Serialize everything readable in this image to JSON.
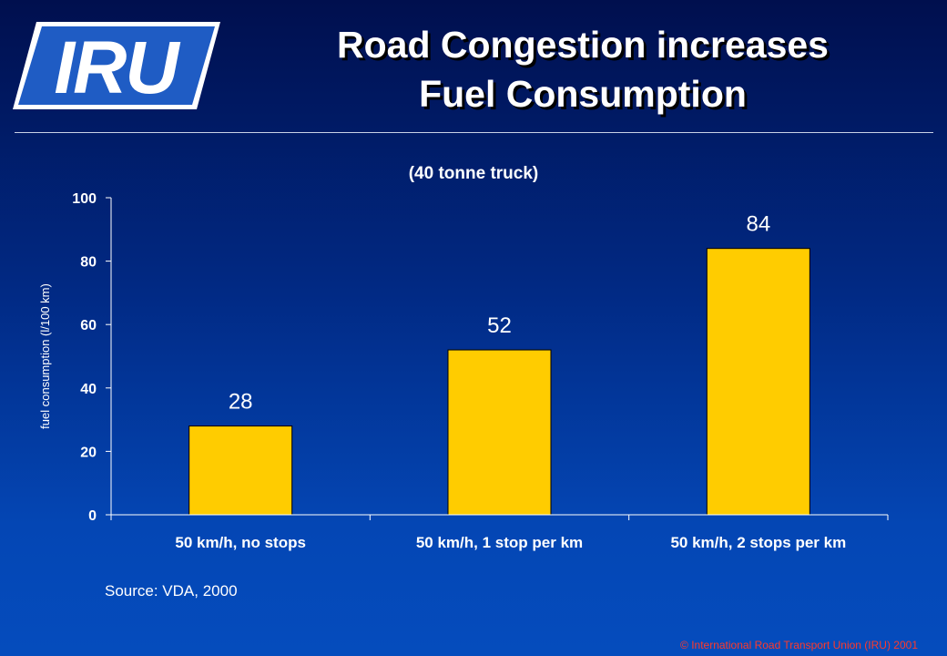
{
  "brand": {
    "logo_text": "IRU",
    "logo_color": "#1f5cc4"
  },
  "slide": {
    "title_line1": "Road Congestion increases",
    "title_line2": "Fuel Consumption",
    "source": "Source: VDA, 2000",
    "copyright": "© International Road Transport Union (IRU) 2001"
  },
  "chart_data": {
    "type": "bar",
    "subtitle": "(40 tonne truck)",
    "categories": [
      "50 km/h, no stops",
      "50 km/h, 1 stop per km",
      "50 km/h, 2 stops per km"
    ],
    "values": [
      28,
      52,
      84
    ],
    "data_labels": [
      "28",
      "52",
      "84"
    ],
    "ylabel": "fuel consumption (l/100 km)",
    "xlabel": "",
    "ylim": [
      0,
      100
    ],
    "yticks": [
      0,
      20,
      40,
      60,
      80,
      100
    ],
    "grid": false,
    "legend": "none",
    "bar_color": "#ffcc00",
    "bar_edge_color": "#000000",
    "axis_color": "#ffffff",
    "text_color": "#ffffff"
  }
}
